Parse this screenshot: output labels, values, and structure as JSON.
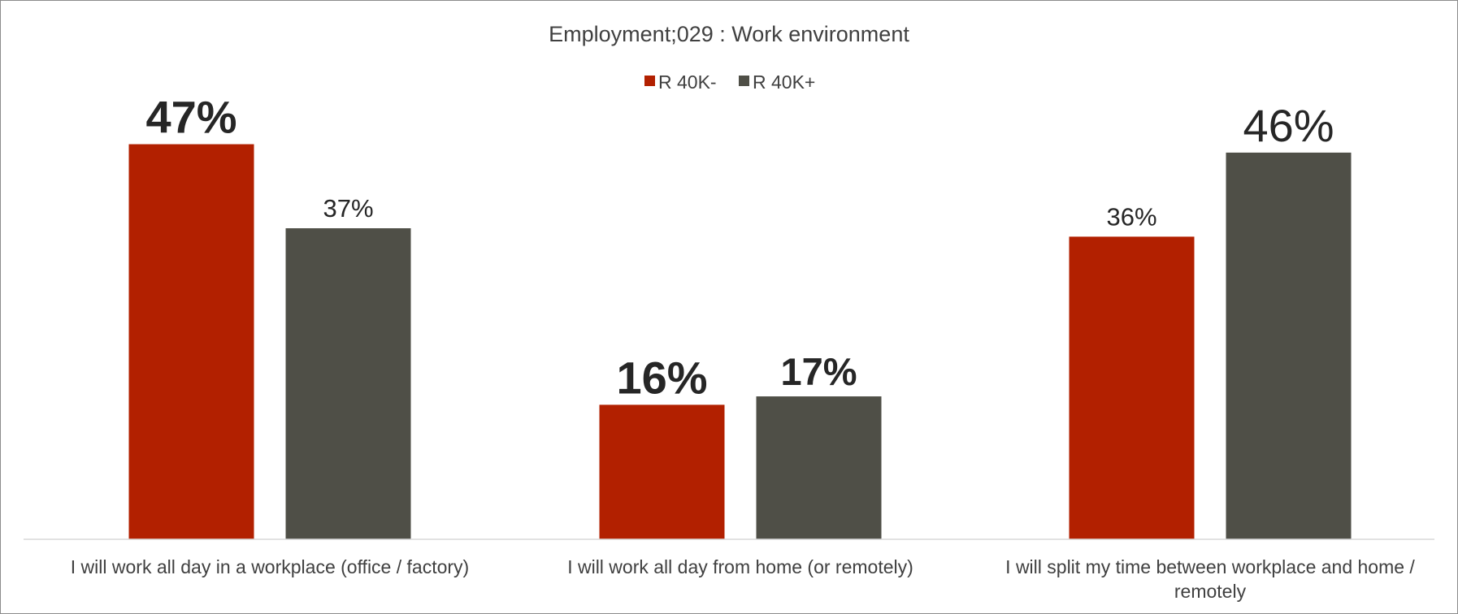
{
  "chart_data": {
    "type": "bar",
    "title": "Employment;029 : Work environment",
    "xlabel": "",
    "ylabel": "",
    "ylim": [
      0,
      50
    ],
    "grid": false,
    "legend_position": "top",
    "categories": [
      [
        "I will work all day in a workplace (office / factory)"
      ],
      [
        "I will work all day from home (or remotely)"
      ],
      [
        "I will split my time between workplace and home /",
        "remotely"
      ]
    ],
    "series": [
      {
        "name": "R 40K-",
        "color": "#b22000",
        "values": [
          47,
          16,
          36
        ],
        "labels": [
          "47%",
          "16%",
          "36%"
        ],
        "label_style": [
          "bold-large",
          "bold-large",
          "normal"
        ]
      },
      {
        "name": "R 40K+",
        "color": "#4f4f47",
        "values": [
          37,
          17,
          46
        ],
        "labels": [
          "37%",
          "17%",
          "46%"
        ],
        "label_style": [
          "normal",
          "bold-medium",
          "large"
        ]
      }
    ]
  }
}
